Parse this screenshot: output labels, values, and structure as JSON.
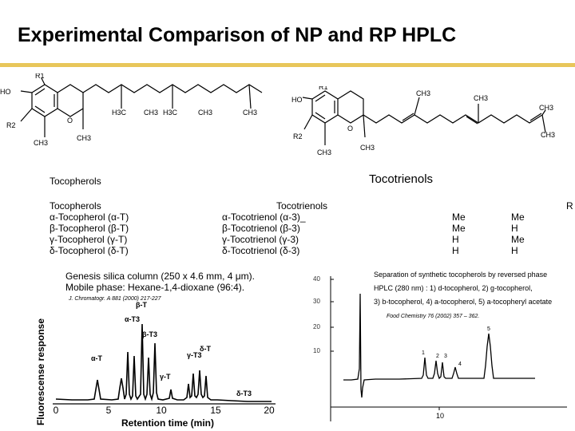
{
  "title": "Experimental Comparison of NP and RP HPLC",
  "structures": {
    "tocopherol": {
      "r1": "R1",
      "ho": "HO",
      "r2": "R2",
      "o": "O",
      "ch3_bottom": "CH3",
      "ch3_ring": "CH3",
      "h3c_1": "H3C",
      "ch3_a": "CH3",
      "h3c_2": "H3C",
      "ch3_b": "CH3",
      "ch3_end": "CH3"
    },
    "tocotrienol": {
      "r1": "R1",
      "ho": "HO",
      "r2": "R2",
      "o": "O",
      "ch3_bottom": "CH3",
      "ch3_ring": "CH3",
      "ch3_a": "CH3",
      "ch3_b": "CH3",
      "ch3_c": "CH3",
      "ch3_end": "CH3"
    }
  },
  "labels": {
    "tocopherols_heading": "Tocopherols",
    "tocotrienols_heading": "Tocotrienols",
    "tocopherols_list_heading": "Tocopherols",
    "tocotrienols_list_heading": "Tocotrienols",
    "r_col": "R"
  },
  "tocopherols": [
    "α-Tocopherol (α-T)",
    "β-Tocopherol (β-T)",
    "γ-Tocopherol (γ-T)",
    "δ-Tocopherol (δ-T)"
  ],
  "tocotrienols": [
    "α-Tocotrienol (α-3)_",
    "β-Tocotrienol (β-3)",
    "γ-Tocotrienol (γ-3)",
    "δ-Tocotrienol (δ-3)"
  ],
  "r1": [
    "Me",
    "Me",
    "H",
    "H"
  ],
  "r2": [
    "Me",
    "H",
    "Me",
    "H"
  ],
  "np_method": {
    "line1": "Genesis silica column (250 x 4.6 mm, 4 μm).",
    "line2": "Mobile phase: Hexane-1,4-dioxane (96:4).",
    "ref": "J. Chromatogr. A 881 (2000) 217-227"
  },
  "rp_method": {
    "line1": "Separation of synthetic tocopherols by reversed phase",
    "line2": "HPLC (280 nm) : 1) d-tocopherol, 2) g-tocopherol,",
    "line3": "3) b-tocopherol, 4) a-tocopherol, 5) a-tocopheryl acetate",
    "ref": "Food Chemistry 76 (2002) 357 – 362."
  },
  "np_chart": {
    "ylabel": "Fluorescense response",
    "xlabel": "Retention  time  (min)",
    "x_ticks": [
      "0",
      "5",
      "10",
      "15",
      "20"
    ],
    "peak_labels": [
      "α-T",
      "α-T3",
      "β-T",
      "β-T3",
      "γ-T",
      "γ-T3",
      "δ-T",
      "δ-T3"
    ]
  },
  "rp_chart": {
    "y_ticks": [
      "40",
      "30",
      "20",
      "10"
    ],
    "x_ticks": [
      "10"
    ],
    "peak_labels": [
      "1",
      "2",
      "3",
      "4",
      "5"
    ]
  },
  "colors": {
    "rule": "#e8c65a"
  }
}
